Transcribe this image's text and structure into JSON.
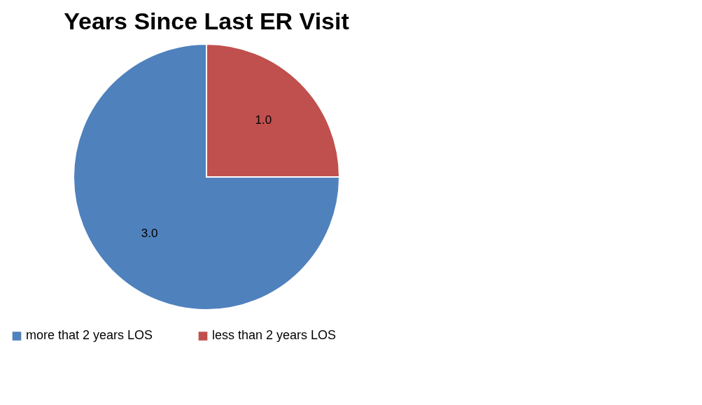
{
  "chart_data": {
    "type": "pie",
    "title": "Years Since Last ER Visit",
    "categories": [
      "more that 2 years LOS",
      "less than 2 years LOS"
    ],
    "values": [
      3.0,
      1.0
    ],
    "colors": [
      "#4f81bd",
      "#c0504d"
    ],
    "value_labels": [
      "3.0",
      "1.0"
    ],
    "legend": "bottom"
  }
}
